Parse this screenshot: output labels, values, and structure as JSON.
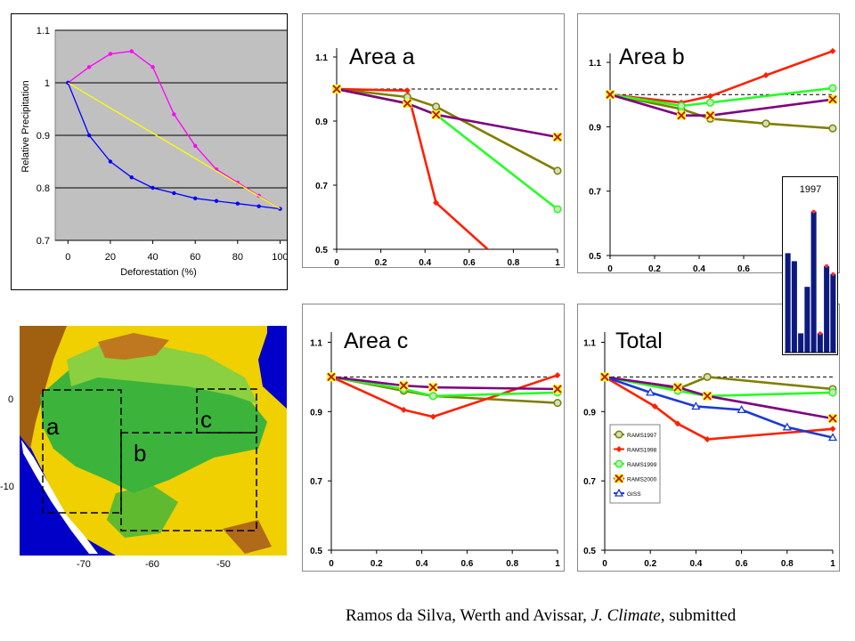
{
  "citation": {
    "authors": "Ramos da Silva, Werth and Avissar, ",
    "journal": "J. Climate",
    "status": ", submitted"
  },
  "colors": {
    "rams1997": "#7f7f00",
    "rams1998": "#ff2000",
    "rams1999": "#22ff22",
    "rams2000": "#7f0080",
    "giss": "#1a3ad8",
    "reference": "#000000",
    "excel_bg": "#c0c0c0",
    "magenta": "#ff00ff",
    "blue": "#0000ff",
    "yellow": "#ffff00",
    "inset_bar": "#0c1a80"
  },
  "map": {
    "box_labels": [
      "a",
      "b",
      "c"
    ],
    "x_ticks": [
      "-70",
      "-60",
      "-50"
    ],
    "y_ticks": [
      "0",
      "-10"
    ]
  },
  "chart_data": [
    {
      "id": "relative-precip",
      "type": "line",
      "title": "",
      "xlabel": "Deforestation (%)",
      "ylabel": "Relative Precipitation",
      "xlim": [
        -6,
        104
      ],
      "ylim": [
        0.7,
        1.1
      ],
      "xticks": [
        0,
        20,
        40,
        60,
        80,
        100
      ],
      "xtick_labels": [
        "0",
        "20",
        "40",
        "60",
        "80",
        "100"
      ],
      "yticks": [
        0.7,
        0.8,
        0.9,
        1.0,
        1.1
      ],
      "ytick_labels": [
        "0.7",
        "0.8",
        "0.9",
        "1",
        "1.1"
      ],
      "grid": "horizontal",
      "series": [
        {
          "name": "magenta",
          "color": "#ff00ff",
          "marker": "dot",
          "x": [
            0,
            10,
            20,
            30,
            40,
            50,
            60,
            70,
            80,
            90,
            100
          ],
          "y": [
            1.0,
            1.03,
            1.055,
            1.06,
            1.03,
            0.94,
            0.88,
            0.835,
            0.81,
            0.785,
            0.76
          ]
        },
        {
          "name": "blue",
          "color": "#0000ff",
          "marker": "dot",
          "x": [
            0,
            10,
            20,
            30,
            40,
            50,
            60,
            70,
            80,
            90,
            100
          ],
          "y": [
            1.0,
            0.9,
            0.85,
            0.82,
            0.8,
            0.79,
            0.78,
            0.775,
            0.77,
            0.765,
            0.76
          ]
        },
        {
          "name": "yellow",
          "color": "#ffff00",
          "marker": "none",
          "x": [
            0,
            100
          ],
          "y": [
            1.0,
            0.76
          ]
        }
      ]
    },
    {
      "id": "area-a",
      "type": "line",
      "title": "Area a",
      "xlim": [
        0,
        1
      ],
      "ylim": [
        0.5,
        1.15
      ],
      "xticks": [
        0,
        0.2,
        0.4,
        0.6,
        0.8,
        1
      ],
      "xtick_labels": [
        "0",
        "0.2",
        "0.4",
        "0.6",
        "0.8",
        "1"
      ],
      "yticks": [
        0.5,
        0.7,
        0.9,
        1.1
      ],
      "ytick_labels": [
        "0.5",
        "0.7",
        "0.9",
        "1.1"
      ],
      "reference_line": 1.0,
      "series": [
        {
          "name": "RAMS1997",
          "color": "#7f7f00",
          "marker": "circle",
          "x": [
            0,
            0.32,
            0.45,
            1
          ],
          "y": [
            1.0,
            0.975,
            0.945,
            0.745
          ]
        },
        {
          "name": "RAMS1998",
          "color": "#ff2000",
          "marker": "diamond",
          "x": [
            0,
            0.32,
            0.45,
            0.7
          ],
          "y": [
            1.0,
            0.995,
            0.645,
            0.49
          ]
        },
        {
          "name": "RAMS1999",
          "color": "#22ff22",
          "marker": "circle",
          "x": [
            0,
            0.32,
            0.45,
            1
          ],
          "y": [
            1.0,
            0.955,
            0.92,
            0.625
          ]
        },
        {
          "name": "RAMS2000",
          "color": "#7f0080",
          "marker": "x",
          "x": [
            0,
            0.32,
            0.45,
            1
          ],
          "y": [
            1.0,
            0.955,
            0.92,
            0.85
          ]
        }
      ]
    },
    {
      "id": "area-b",
      "type": "line",
      "title": "Area b",
      "xlim": [
        0,
        1
      ],
      "ylim": [
        0.5,
        1.15
      ],
      "xticks": [
        0,
        0.2,
        0.4,
        0.6,
        0.8,
        1
      ],
      "xtick_labels": [
        "0",
        "0.2",
        "0.4",
        "0.6",
        "",
        ""
      ],
      "yticks": [
        0.5,
        0.7,
        0.9,
        1.1
      ],
      "ytick_labels": [
        "0.5",
        "0.7",
        "0.9",
        "1.1"
      ],
      "reference_line": 1.0,
      "series": [
        {
          "name": "RAMS1997",
          "color": "#7f7f00",
          "marker": "circle",
          "x": [
            0,
            0.32,
            0.45,
            0.7,
            1
          ],
          "y": [
            1.0,
            0.955,
            0.925,
            0.91,
            0.895
          ]
        },
        {
          "name": "RAMS1998",
          "color": "#ff2000",
          "marker": "diamond",
          "x": [
            0,
            0.32,
            0.45,
            0.7,
            1
          ],
          "y": [
            1.0,
            0.975,
            0.995,
            1.06,
            1.135
          ]
        },
        {
          "name": "RAMS1999",
          "color": "#22ff22",
          "marker": "circle",
          "x": [
            0,
            0.32,
            0.45,
            1
          ],
          "y": [
            1.0,
            0.965,
            0.975,
            1.02
          ]
        },
        {
          "name": "RAMS2000",
          "color": "#7f0080",
          "marker": "x",
          "x": [
            0,
            0.32,
            0.45,
            1
          ],
          "y": [
            1.0,
            0.935,
            0.935,
            0.985
          ]
        }
      ]
    },
    {
      "id": "area-c",
      "type": "line",
      "title": "Area c",
      "xlim": [
        0,
        1
      ],
      "ylim": [
        0.5,
        1.15
      ],
      "xticks": [
        0,
        0.2,
        0.4,
        0.6,
        0.8,
        1
      ],
      "xtick_labels": [
        "0",
        "0.2",
        "0.4",
        "0.6",
        "0.8",
        "1"
      ],
      "yticks": [
        0.5,
        0.7,
        0.9,
        1.1
      ],
      "ytick_labels": [
        "0.5",
        "0.7",
        "0.9",
        "1.1"
      ],
      "reference_line": 1.0,
      "series": [
        {
          "name": "RAMS1997",
          "color": "#7f7f00",
          "marker": "circle",
          "x": [
            0,
            0.32,
            0.45,
            1
          ],
          "y": [
            1.0,
            0.96,
            0.945,
            0.925
          ]
        },
        {
          "name": "RAMS1998",
          "color": "#ff2000",
          "marker": "diamond",
          "x": [
            0,
            0.32,
            0.45,
            1
          ],
          "y": [
            1.0,
            0.905,
            0.885,
            1.005
          ]
        },
        {
          "name": "RAMS1999",
          "color": "#22ff22",
          "marker": "circle",
          "x": [
            0,
            0.32,
            0.45,
            1
          ],
          "y": [
            1.0,
            0.965,
            0.945,
            0.955
          ]
        },
        {
          "name": "RAMS2000",
          "color": "#7f0080",
          "marker": "x",
          "x": [
            0,
            0.32,
            0.45,
            1
          ],
          "y": [
            1.0,
            0.975,
            0.97,
            0.965
          ]
        }
      ]
    },
    {
      "id": "total",
      "type": "line",
      "title": "Total",
      "xlim": [
        0,
        1
      ],
      "ylim": [
        0.5,
        1.15
      ],
      "xticks": [
        0,
        0.2,
        0.4,
        0.6,
        0.8,
        1
      ],
      "xtick_labels": [
        "0",
        "0.2",
        "0.4",
        "0.6",
        "0.8",
        "1"
      ],
      "yticks": [
        0.5,
        0.7,
        0.9,
        1.1
      ],
      "ytick_labels": [
        "0.5",
        "0.7",
        "0.9",
        "1.1"
      ],
      "reference_line": 1.0,
      "legend": "bottom-left",
      "series": [
        {
          "name": "RAMS1997",
          "color": "#7f7f00",
          "marker": "circle",
          "x": [
            0,
            0.32,
            0.45,
            1
          ],
          "y": [
            1.0,
            0.965,
            1.0,
            0.965
          ]
        },
        {
          "name": "RAMS1998",
          "color": "#ff2000",
          "marker": "diamond",
          "x": [
            0,
            0.22,
            0.32,
            0.45,
            1
          ],
          "y": [
            1.0,
            0.915,
            0.865,
            0.82,
            0.85
          ]
        },
        {
          "name": "RAMS1999",
          "color": "#22ff22",
          "marker": "circle",
          "x": [
            0,
            0.32,
            0.45,
            1
          ],
          "y": [
            1.0,
            0.96,
            0.945,
            0.955
          ]
        },
        {
          "name": "RAMS2000",
          "color": "#7f0080",
          "marker": "x",
          "x": [
            0,
            0.32,
            0.45,
            1
          ],
          "y": [
            1.0,
            0.97,
            0.945,
            0.88
          ]
        },
        {
          "name": "GISS",
          "color": "#1a3ad8",
          "marker": "triangle",
          "x": [
            0,
            0.2,
            0.4,
            0.6,
            0.8,
            1
          ],
          "y": [
            1.0,
            0.955,
            0.915,
            0.905,
            0.855,
            0.825
          ]
        }
      ]
    },
    {
      "id": "inset-1997",
      "type": "bar",
      "title": "1997",
      "ylim": [
        0,
        1
      ],
      "values": [
        0.62,
        0.57,
        0.12,
        0.41,
        0.88,
        0.12,
        0.54,
        0.49
      ],
      "top_markers": [
        false,
        false,
        false,
        false,
        true,
        true,
        true,
        true
      ]
    }
  ]
}
